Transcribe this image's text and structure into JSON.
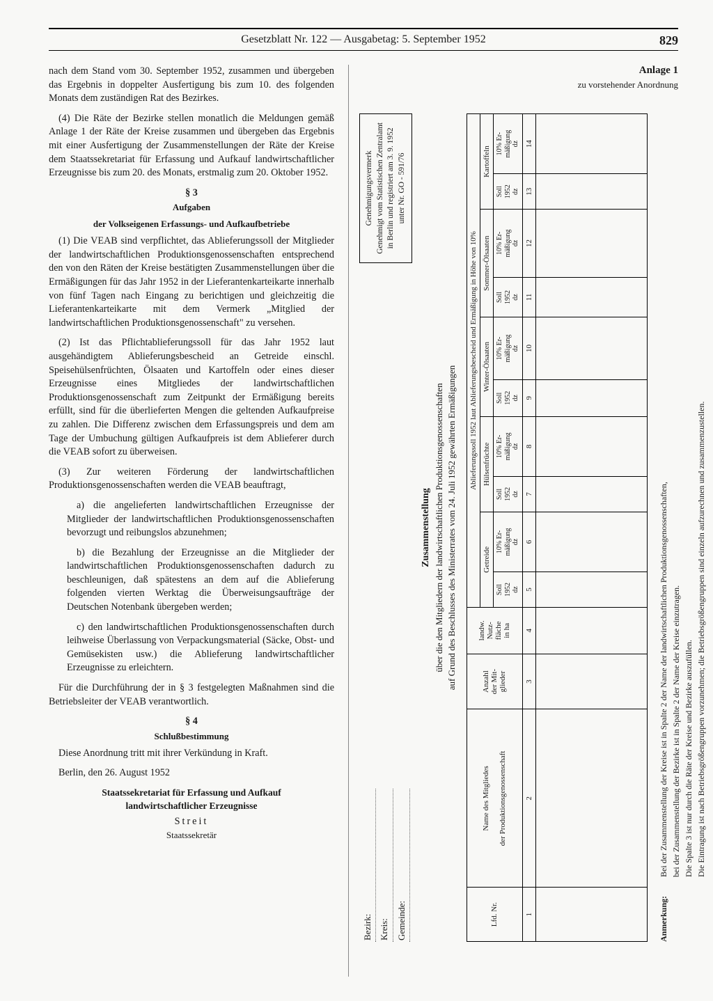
{
  "header": {
    "title": "Gesetzblatt Nr. 122 — Ausgabetag: 5. September 1952",
    "page_number": "829"
  },
  "left": {
    "p1": "nach dem Stand vom 30. September 1952, zusammen und übergeben das Ergebnis in doppelter Ausfertigung bis zum 10. des folgenden Monats dem zuständigen Rat des Bezirkes.",
    "p2": "(4) Die Räte der Bezirke stellen monatlich die Meldungen gemäß Anlage 1 der Räte der Kreise zusammen und übergeben das Ergebnis mit einer Ausfertigung der Zusammenstellungen der Räte der Kreise dem Staatssekretariat für Erfassung und Aufkauf landwirtschaftlicher Erzeugnisse bis zum 20. des Monats, erstmalig zum 20. Oktober 1952.",
    "s3": "§ 3",
    "s3_sub1": "Aufgaben",
    "s3_sub2": "der Volkseigenen Erfassungs- und Aufkaufbetriebe",
    "p3": "(1) Die VEAB sind verpflichtet, das Ablieferungssoll der Mitglieder der landwirtschaftlichen Produktionsgenossenschaften entsprechend den von den Räten der Kreise bestätigten Zusammenstellungen über die Ermäßigungen für das Jahr 1952 in der Lieferantenkarteikarte innerhalb von fünf Tagen nach Eingang zu berichtigen und gleichzeitig die Lieferantenkarteikarte mit dem Vermerk „Mitglied der landwirtschaftlichen Produktionsgenossenschaft\" zu versehen.",
    "p4": "(2) Ist das Pflichtablieferungssoll für das Jahr 1952 laut ausgehändigtem Ablieferungsbescheid an Getreide einschl. Speisehülsenfrüchten, Ölsaaten und Kartoffeln oder eines dieser Erzeugnisse eines Mitgliedes der landwirtschaftlichen Produktionsgenossenschaft zum Zeitpunkt der Ermäßigung bereits erfüllt, sind für die überlieferten Mengen die geltenden Aufkaufpreise zu zahlen. Die Differenz zwischen dem Erfassungspreis und dem am Tage der Umbuchung gültigen Aufkaufpreis ist dem Ablieferer durch die VEAB sofort zu überweisen.",
    "p5": "(3) Zur weiteren Förderung der landwirtschaftlichen Produktionsgenossenschaften werden die VEAB beauftragt,",
    "li_a": "a) die angelieferten landwirtschaftlichen Erzeugnisse der Mitglieder der landwirtschaftlichen Produktionsgenossenschaften bevorzugt und reibungslos abzunehmen;",
    "li_b": "b) die Bezahlung der Erzeugnisse an die Mitglieder der landwirtschaftlichen Produktionsgenossenschaften dadurch zu beschleunigen, daß spätestens an dem auf die Ablieferung folgenden vierten Werktag die Überweisungsaufträge der Deutschen Notenbank übergeben werden;",
    "li_c": "c) den landwirtschaftlichen Produktionsgenossenschaften durch leihweise Überlassung von Verpackungsmaterial (Säcke, Obst- und Gemüsekisten usw.) die Ablieferung landwirtschaftlicher Erzeugnisse zu erleichtern.",
    "p6": "Für die Durchführung der in § 3 festgelegten Maßnahmen sind die Betriebsleiter der VEAB verantwortlich.",
    "s4": "§ 4",
    "s4_sub": "Schlußbestimmung",
    "p7": "Diese Anordnung tritt mit ihrer Verkündung in Kraft.",
    "place_date": "Berlin, den 26. August 1952",
    "org1": "Staatssekretariat für Erfassung und Aufkauf",
    "org2": "landwirtschaftlicher Erzeugnisse",
    "name": "Streit",
    "role": "Staatssekretär"
  },
  "anlage": {
    "title": "Anlage 1",
    "subtitle": "zu vorstehender Anordnung",
    "locale": {
      "bezirk": "Bezirk:",
      "kreis": "Kreis:",
      "gemeinde": "Gemeinde:"
    },
    "approval": {
      "head": "Genehmigungsvermerk",
      "l1": "Genehmigt vom Statistischen Zentralamt",
      "l2": "in Berlin und registriert am 3. 9. 1952",
      "l3": "unter Nr. GO - 591/76"
    },
    "form_title": {
      "main": "Zusammenstellung",
      "l1": "über die den Mitgliedern der landwirtschaftlichen Produktionsgenossenschaften",
      "l2": "auf Grund des Beschlusses des Ministerrates vom 24. Juli 1952 gewährten Ermäßigungen"
    },
    "table": {
      "span_head": "Ablieferungssoll 1952 laut Ablieferungsbescheid und Ermäßigung in Höhe von 10%",
      "cols": {
        "c1": "Lfd. Nr.",
        "c2a": "Name des Mitgliedes",
        "c2b": "der Produktionsgenossenschaft",
        "c3a": "Anzahl",
        "c3b": "der Mit-",
        "c3c": "glieder",
        "c4a": "landw.",
        "c4b": "Nutz-",
        "c4c": "fläche",
        "c4d": "in ha",
        "g1": "Getreide",
        "g2": "Hülsenfrüchte",
        "g3": "Winter-Ölsaaten",
        "g4": "Sommer-Ölsaaten",
        "g5": "Kartoffeln",
        "soll_a": "Soll",
        "soll_b": "1952",
        "soll_c": "dz",
        "erm_a": "10% Er-",
        "erm_b": "mäßigung",
        "erm_c": "dz"
      },
      "nums": [
        "1",
        "2",
        "3",
        "4",
        "5",
        "6",
        "7",
        "8",
        "9",
        "10",
        "11",
        "12",
        "13",
        "14"
      ]
    },
    "note_label": "Anmerkung:",
    "note_l1": "Bei der Zusammenstellung der Kreise ist in Spalte 2 der Name der landwirtschaftlichen Produktionsgenossenschaften,",
    "note_l2": "bei der Zusammenstellung der Bezirke ist in Spalte 2 der Name der Kreise einzutragen.",
    "note_l3": "Die Spalte 3 ist nur durch die Räte der Kreise und Bezirke auszufüllen.",
    "note_l4": "Die Eintragung ist nach Betriebsgrößengruppen vorzunehmen; die Betriebsgrößengruppen sind einzeln aufzurechnen und zusammenzustellen."
  }
}
